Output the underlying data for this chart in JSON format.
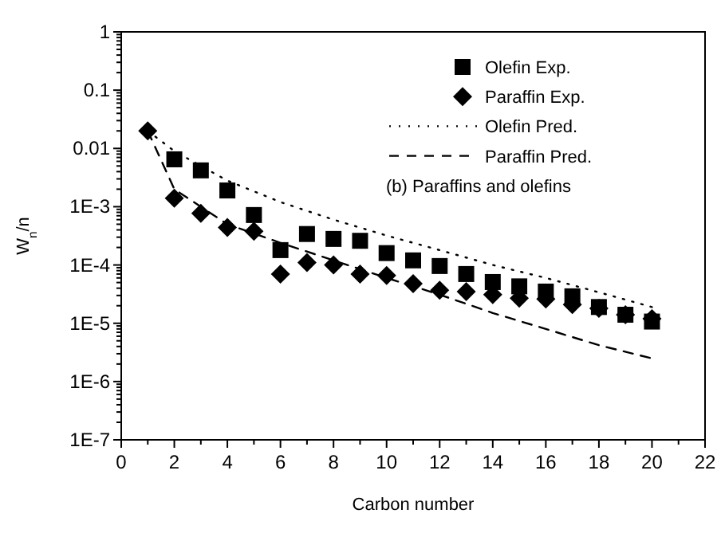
{
  "chart_data": {
    "type": "scatter",
    "xlabel": "Carbon number",
    "ylabel": "W$_{n}$/n",
    "log": "y",
    "xlim": [
      0,
      22
    ],
    "xticks": [
      0,
      2,
      4,
      6,
      8,
      10,
      12,
      14,
      16,
      18,
      20,
      22
    ],
    "ylim": [
      1e-07,
      1
    ],
    "yticks": [
      {
        "value": 1e-07,
        "label": "1E-7"
      },
      {
        "value": 1e-06,
        "label": "1E-6"
      },
      {
        "value": 1e-05,
        "label": "1E-5"
      },
      {
        "value": 0.0001,
        "label": "1E-4"
      },
      {
        "value": 0.001,
        "label": "1E-3"
      },
      {
        "value": 0.01,
        "label": "0.01"
      },
      {
        "value": 0.1,
        "label": "0.1"
      },
      {
        "value": 1,
        "label": "1"
      }
    ],
    "grid": false,
    "legend": "top right",
    "annotations": [
      "(b) Paraffins and olefins"
    ],
    "series": [
      {
        "name": "Olefin Exp.",
        "marker": "square",
        "color": "#000000",
        "x": [
          2,
          3,
          4,
          5,
          6,
          7,
          8,
          9,
          10,
          11,
          12,
          13,
          14,
          15,
          16,
          17,
          18,
          19,
          20
        ],
        "values": [
          0.0065,
          0.0042,
          0.0019,
          0.00072,
          0.00018,
          0.00034,
          0.00028,
          0.00026,
          0.00016,
          0.00012,
          9.6e-05,
          7e-05,
          5.1e-05,
          4.3e-05,
          3.5e-05,
          2.9e-05,
          1.9e-05,
          1.4e-05,
          1.07e-05
        ]
      },
      {
        "name": "Paraffin Exp.",
        "marker": "diamond",
        "color": "#000000",
        "x": [
          1,
          2,
          3,
          4,
          5,
          6,
          7,
          8,
          9,
          10,
          11,
          12,
          13,
          14,
          15,
          16,
          17,
          18,
          19,
          20
        ],
        "values": [
          0.02,
          0.0014,
          0.00077,
          0.00044,
          0.00038,
          7e-05,
          0.00011,
          0.0001,
          7e-05,
          6.6e-05,
          4.8e-05,
          3.7e-05,
          3.5e-05,
          3.1e-05,
          2.7e-05,
          2.6e-05,
          2.1e-05,
          1.8e-05,
          1.4e-05,
          1.2e-05
        ]
      },
      {
        "name": "Olefin Pred.",
        "type": "line",
        "marker": "none",
        "line_style": "dotted",
        "color": "#000000",
        "x": [
          1,
          2,
          4,
          6,
          8,
          10,
          12,
          14,
          16,
          18,
          20
        ],
        "values": [
          0.02,
          0.009,
          0.0028,
          0.0012,
          0.0006,
          0.00032,
          0.00018,
          0.0001,
          6e-05,
          3.4e-05,
          1.9e-05
        ]
      },
      {
        "name": "Paraffin Pred.",
        "type": "line",
        "marker": "none",
        "line_style": "dashed",
        "color": "#000000",
        "x": [
          1,
          2,
          3,
          4,
          6,
          8,
          10,
          12,
          14,
          16,
          18,
          20
        ],
        "values": [
          0.02,
          0.002,
          0.001,
          0.0005,
          0.00024,
          0.00012,
          6e-05,
          3.1e-05,
          1.5e-05,
          8e-06,
          4.2e-06,
          2.5e-06
        ]
      }
    ]
  }
}
